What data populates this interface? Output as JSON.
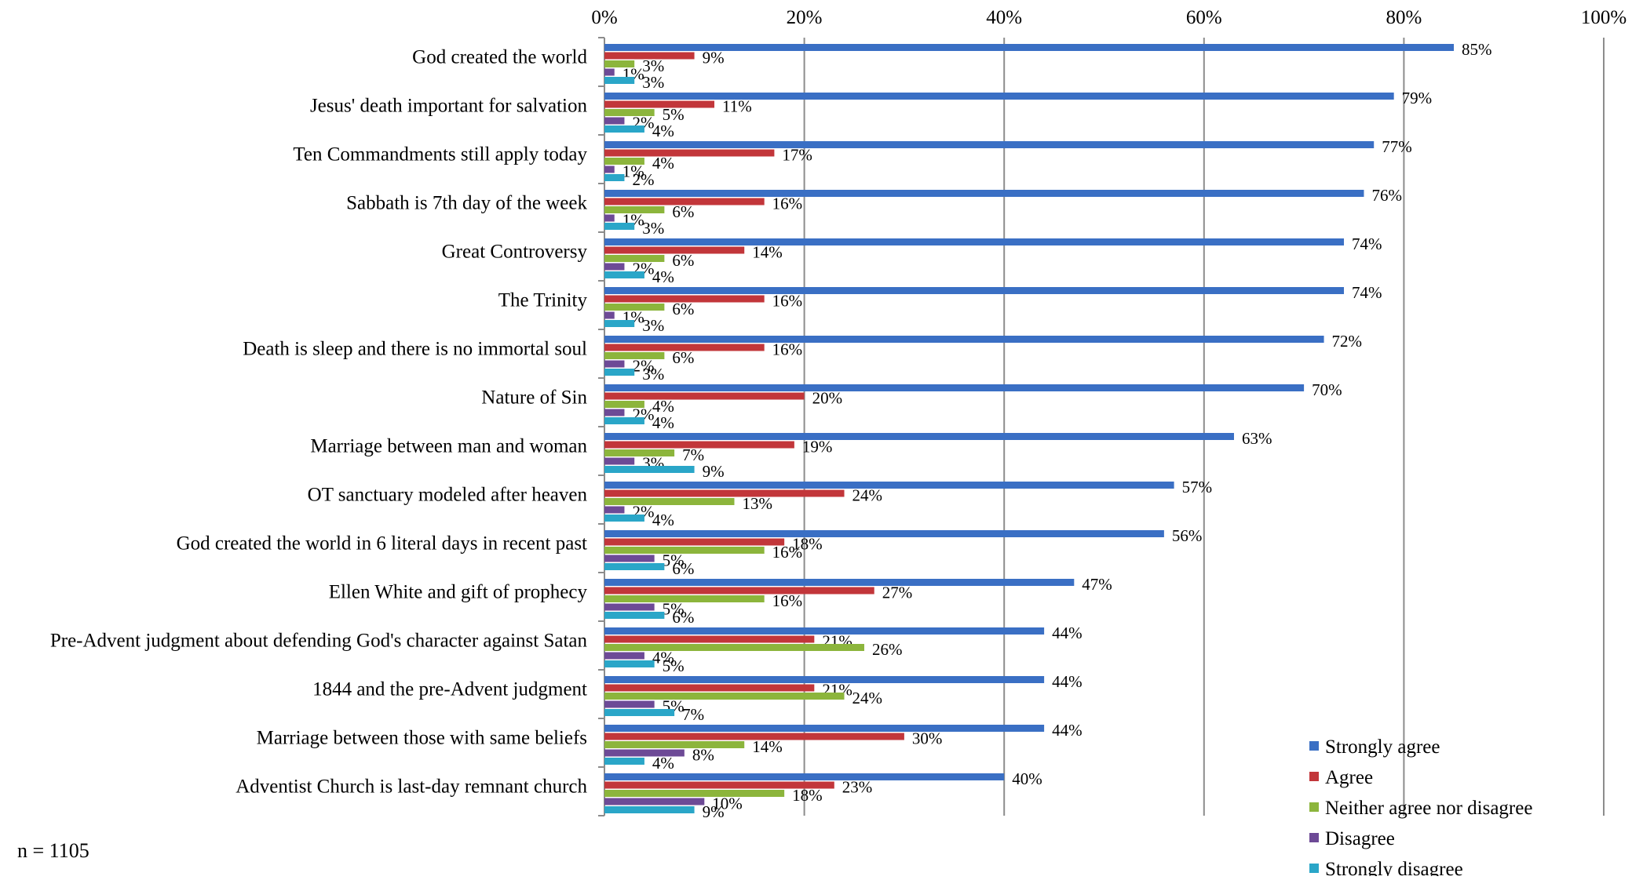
{
  "note": "n = 1105",
  "colors": {
    "Strongly agree": "#3a6fc4",
    "Agree": "#c2363a",
    "Neither agree nor disagree": "#8cb53c",
    "Disagree": "#6d4a96",
    "Strongly disagree": "#2aa6c8"
  },
  "chart_data": {
    "type": "bar",
    "orientation": "horizontal",
    "title": "",
    "xlabel": "",
    "ylabel": "",
    "xlim": [
      0,
      100
    ],
    "x_ticks": [
      "0%",
      "20%",
      "40%",
      "60%",
      "80%",
      "100%"
    ],
    "grid": true,
    "legend_position": "bottom-right",
    "categories": [
      "God created the world",
      "Jesus' death important for salvation",
      "Ten Commandments still apply today",
      "Sabbath is 7th day of the week",
      "Great Controversy",
      "The Trinity",
      "Death is sleep and there is no immortal soul",
      "Nature of Sin",
      "Marriage between man and woman",
      "OT sanctuary modeled after heaven",
      "God created the world in 6 literal days in recent past",
      "Ellen White and gift of prophecy",
      "Pre-Advent judgment about defending God's character against Satan",
      "1844 and the pre-Advent judgment",
      "Marriage between those with same beliefs",
      "Adventist Church is last-day remnant church"
    ],
    "series": [
      {
        "name": "Strongly agree",
        "values": [
          85,
          79,
          77,
          76,
          74,
          74,
          72,
          70,
          63,
          57,
          56,
          47,
          44,
          44,
          44,
          40
        ]
      },
      {
        "name": "Agree",
        "values": [
          9,
          11,
          17,
          16,
          14,
          16,
          16,
          20,
          19,
          24,
          18,
          27,
          21,
          21,
          30,
          23
        ]
      },
      {
        "name": "Neither agree nor disagree",
        "values": [
          3,
          5,
          4,
          6,
          6,
          6,
          6,
          4,
          7,
          13,
          16,
          16,
          26,
          24,
          14,
          18
        ]
      },
      {
        "name": "Disagree",
        "values": [
          1,
          2,
          1,
          1,
          2,
          1,
          2,
          2,
          3,
          2,
          5,
          5,
          4,
          5,
          8,
          10
        ]
      },
      {
        "name": "Strongly disagree",
        "values": [
          3,
          4,
          2,
          3,
          4,
          3,
          3,
          4,
          9,
          4,
          6,
          6,
          5,
          7,
          4,
          9
        ]
      }
    ]
  }
}
